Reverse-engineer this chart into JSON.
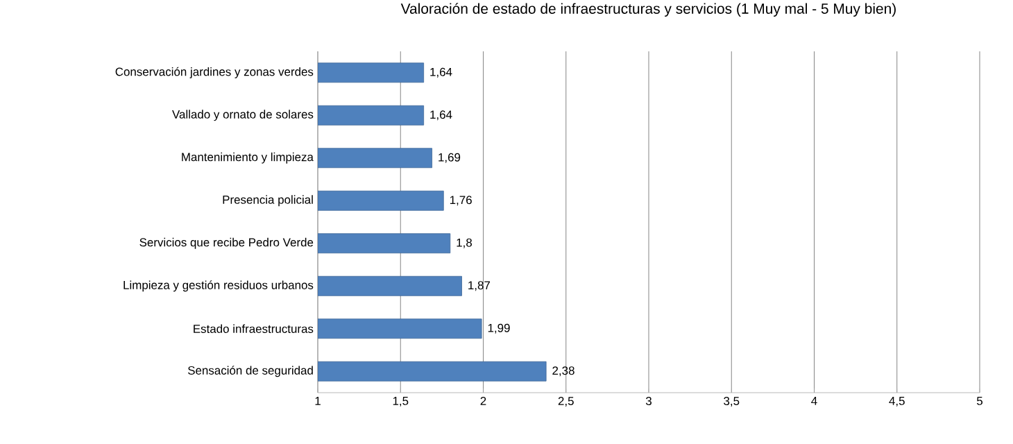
{
  "chart_data": {
    "type": "bar",
    "orientation": "horizontal",
    "title": "Valoración  de estado de infraestructuras y servicios  (1 Muy mal  - 5 Muy bien)",
    "categories": [
      "Conservación jardines y zonas verdes",
      "Vallado  y ornato de solares",
      "Mantenimiento y limpieza",
      "Presencia policial",
      "Servicios que recibe Pedro Verde",
      "Limpieza y gestión residuos urbanos",
      "Estado  infraestructuras",
      "Sensación de seguridad"
    ],
    "values": [
      1.64,
      1.64,
      1.69,
      1.76,
      1.8,
      1.87,
      1.99,
      2.38
    ],
    "value_labels": [
      "1,64",
      "1,64",
      "1,69",
      "1,76",
      "1,8",
      "1,87",
      "1,99",
      "2,38"
    ],
    "color": "#4f81bd",
    "xlim": [
      1,
      5
    ],
    "xticks": [
      1,
      {
        "value": 1.5,
        "label": "1,5"
      },
      2,
      {
        "value": 2.5,
        "label": "2,5"
      },
      3,
      {
        "value": 3.5,
        "label": "3,5"
      },
      4,
      {
        "value": 4.5,
        "label": "4,5"
      },
      5
    ],
    "grid": "x"
  }
}
